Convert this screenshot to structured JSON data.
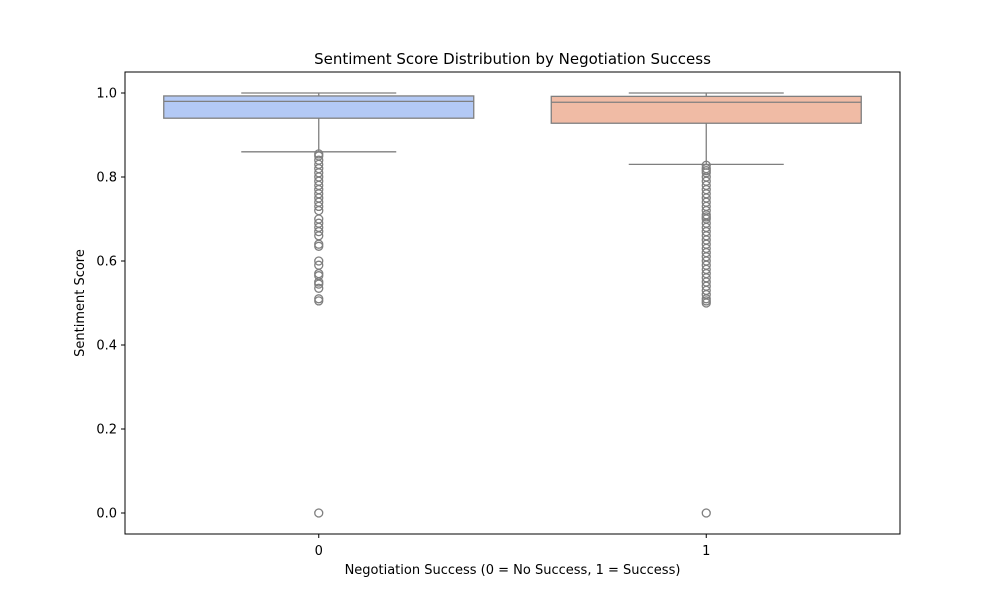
{
  "chart_data": {
    "type": "box",
    "title": "Sentiment Score Distribution by Negotiation Success",
    "xlabel": "Negotiation Success (0 = No Success, 1 = Success)",
    "ylabel": "Sentiment Score",
    "ylim": [
      -0.05,
      1.05
    ],
    "yticks": [
      "0.0",
      "0.2",
      "0.4",
      "0.6",
      "0.8",
      "1.0"
    ],
    "categories": [
      "0",
      "1"
    ],
    "colors": {
      "0": "#b3c9f5",
      "1": "#f0bba5",
      "line": "#7f7f7f"
    },
    "boxes": [
      {
        "category": "0",
        "whisker_low": 0.86,
        "q1": 0.94,
        "median": 0.98,
        "q3": 0.993,
        "whisker_high": 1.0,
        "outliers": [
          0.855,
          0.85,
          0.84,
          0.83,
          0.82,
          0.81,
          0.8,
          0.79,
          0.78,
          0.77,
          0.76,
          0.75,
          0.74,
          0.73,
          0.72,
          0.7,
          0.69,
          0.68,
          0.67,
          0.66,
          0.64,
          0.635,
          0.6,
          0.59,
          0.57,
          0.565,
          0.55,
          0.545,
          0.535,
          0.51,
          0.505,
          0.0
        ]
      },
      {
        "category": "1",
        "whisker_low": 0.83,
        "q1": 0.928,
        "median": 0.978,
        "q3": 0.992,
        "whisker_high": 1.0,
        "outliers": [
          0.828,
          0.82,
          0.815,
          0.81,
          0.8,
          0.79,
          0.78,
          0.77,
          0.76,
          0.75,
          0.74,
          0.73,
          0.72,
          0.71,
          0.705,
          0.7,
          0.69,
          0.68,
          0.67,
          0.66,
          0.65,
          0.64,
          0.63,
          0.62,
          0.61,
          0.6,
          0.59,
          0.58,
          0.57,
          0.56,
          0.55,
          0.54,
          0.53,
          0.52,
          0.51,
          0.505,
          0.5,
          0.0
        ]
      }
    ]
  }
}
